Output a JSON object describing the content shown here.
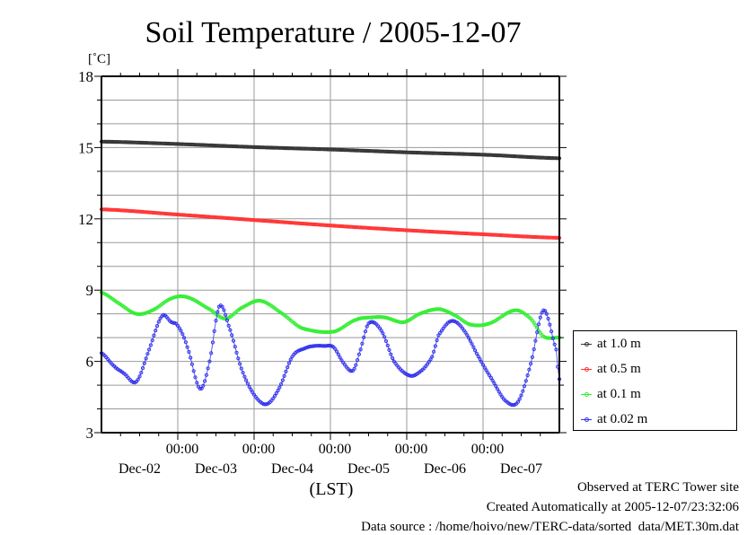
{
  "chart_data": {
    "type": "line",
    "title": "Soil Temperature / 2005-12-07",
    "ylabel": "[˚C]",
    "xlabel": "(LST)",
    "ylim": [
      3,
      18
    ],
    "yticks": [
      3,
      6,
      9,
      12,
      15,
      18
    ],
    "ytick_labels": [
      "3",
      "6",
      "9",
      "12",
      "15",
      "18"
    ],
    "xlim_hours": [
      0,
      144
    ],
    "x_unit": "hours since Dec-02 00:00 LST",
    "xticks_major_hours": [
      24,
      48,
      72,
      96,
      120
    ],
    "xtick_time_labels": [
      "00:00",
      "00:00",
      "00:00",
      "00:00",
      "00:00"
    ],
    "day_labels": [
      "Dec-02",
      "Dec-03",
      "Dec-04",
      "Dec-05",
      "Dec-06",
      "Dec-07"
    ],
    "grid": true,
    "legend_position": "right",
    "series": [
      {
        "name": "at 1.0 m",
        "color": "#333333",
        "x": [
          0,
          24,
          48,
          72,
          96,
          120,
          144
        ],
        "y": [
          15.25,
          15.15,
          15.02,
          14.92,
          14.8,
          14.7,
          14.55
        ]
      },
      {
        "name": "at 0.5 m",
        "color": "#ff3333",
        "x": [
          0,
          24,
          48,
          72,
          96,
          120,
          144
        ],
        "y": [
          12.4,
          12.18,
          11.95,
          11.72,
          11.52,
          11.35,
          11.2
        ]
      },
      {
        "name": "at 0.1 m",
        "color": "#33ee33",
        "x": [
          0,
          6,
          11,
          16,
          22,
          27,
          34,
          39,
          44,
          50,
          57,
          63,
          73,
          80,
          85,
          89,
          95,
          100,
          106,
          111,
          116,
          122,
          130,
          135,
          139,
          144
        ],
        "y": [
          8.9,
          8.4,
          8.0,
          8.15,
          8.65,
          8.7,
          8.2,
          7.8,
          8.25,
          8.55,
          8.0,
          7.4,
          7.25,
          7.75,
          7.85,
          7.85,
          7.65,
          8.0,
          8.2,
          7.95,
          7.55,
          7.6,
          8.15,
          7.8,
          7.05,
          7.0
        ]
      },
      {
        "name": "at 0.02 m",
        "color": "#3333ee",
        "x": [
          0,
          4,
          7,
          11,
          15,
          19,
          22,
          24,
          27,
          31,
          34,
          37,
          40,
          44,
          48,
          52,
          56,
          60,
          64,
          67,
          70,
          73,
          76,
          79,
          81,
          84,
          88,
          92,
          97,
          101,
          104,
          106,
          110,
          114,
          119,
          123,
          127,
          131,
          135,
          139,
          143,
          144
        ],
        "y": [
          6.35,
          5.8,
          5.5,
          5.15,
          6.5,
          7.9,
          7.65,
          7.5,
          6.6,
          4.85,
          6.0,
          8.3,
          7.5,
          5.7,
          4.6,
          4.2,
          4.9,
          6.2,
          6.55,
          6.65,
          6.65,
          6.6,
          5.95,
          5.6,
          6.3,
          7.6,
          7.3,
          6.0,
          5.4,
          5.65,
          6.2,
          7.1,
          7.7,
          7.3,
          6.1,
          5.2,
          4.35,
          4.3,
          5.9,
          8.15,
          6.5,
          5.25
        ]
      }
    ]
  },
  "footer": {
    "observed": "Observed at TERC Tower site",
    "created": "Created Automatically at 2005-12-07/23:32:06",
    "source": "Data source : /home/hoivo/new/TERC-data/sorted  data/MET.30m.dat"
  }
}
